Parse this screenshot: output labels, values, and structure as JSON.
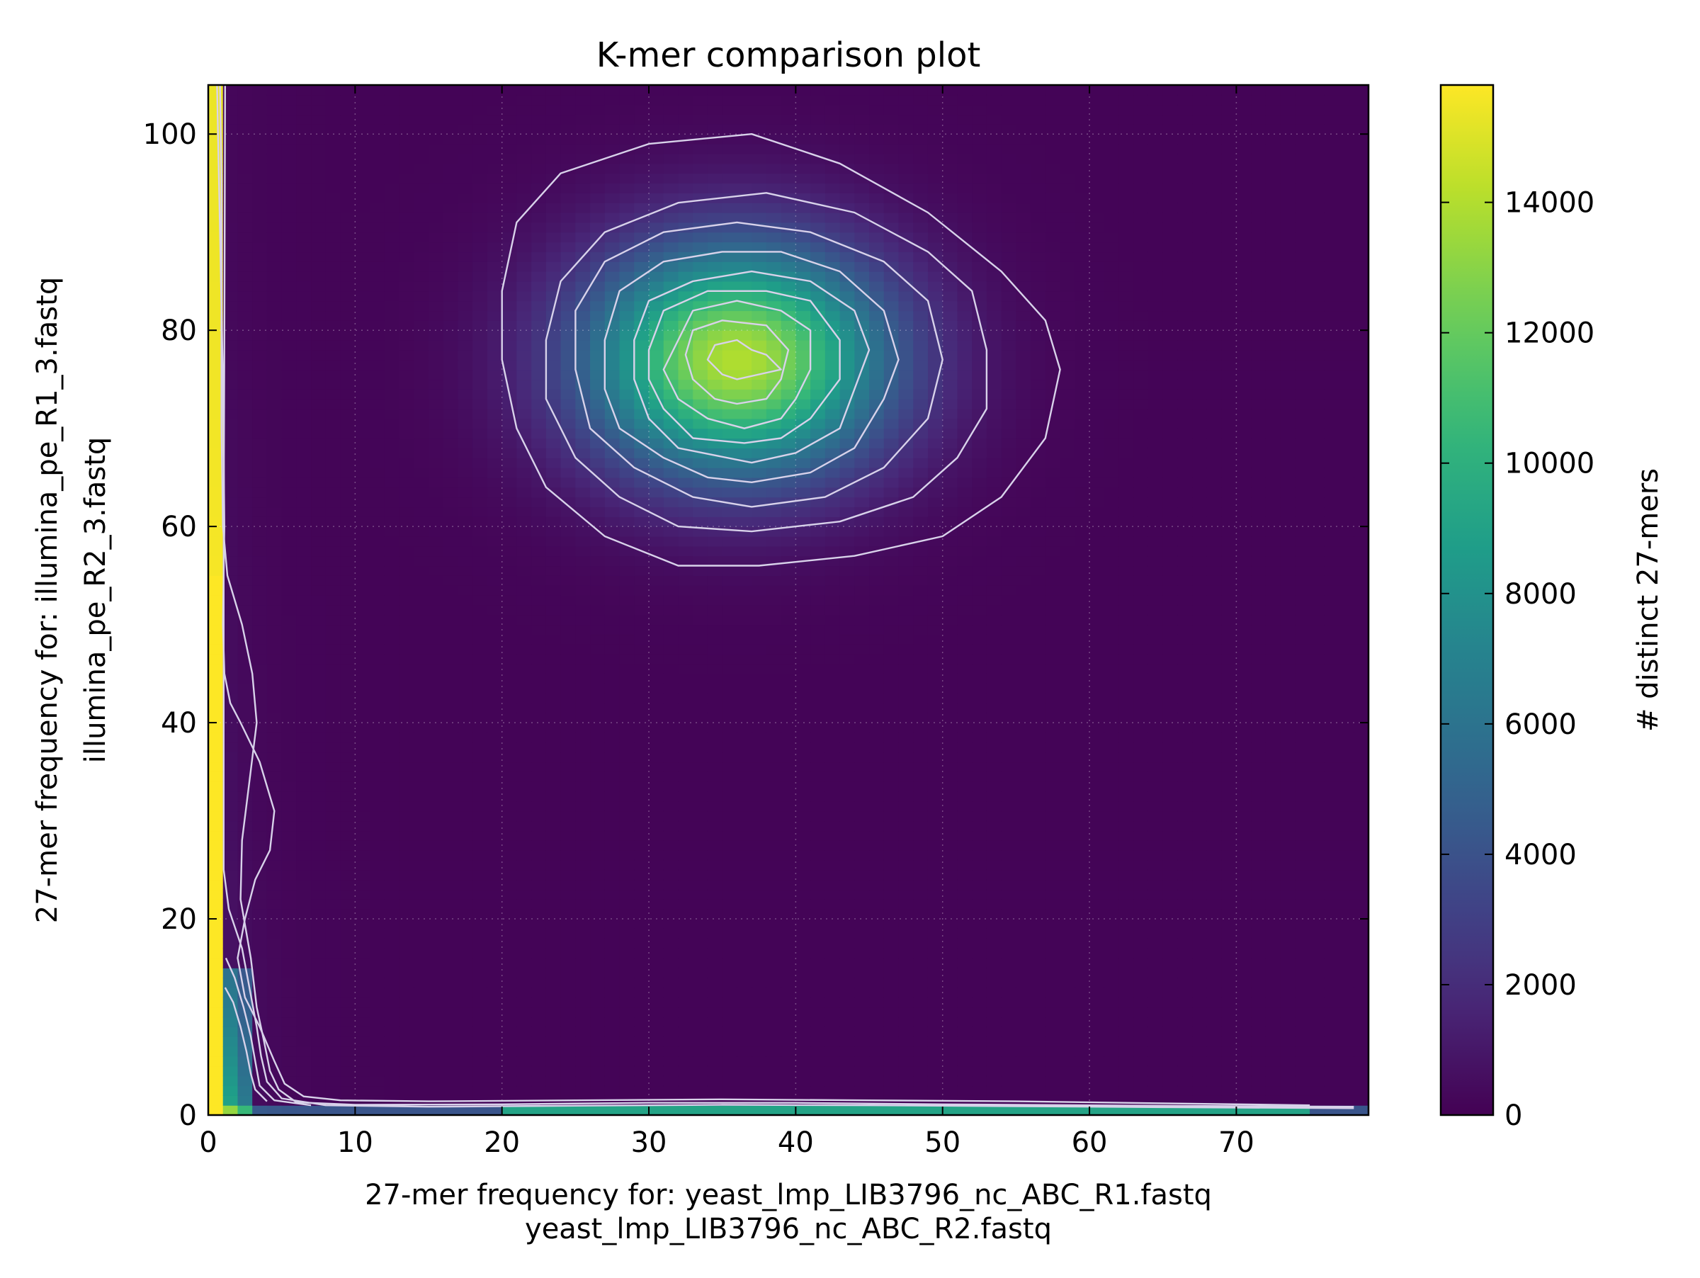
{
  "chart_data": {
    "type": "heatmap",
    "title": "K-mer comparison plot",
    "xlabel_lines": [
      "27-mer frequency for: yeast_lmp_LIB3796_nc_ABC_R1.fastq",
      "yeast_lmp_LIB3796_nc_ABC_R2.fastq"
    ],
    "ylabel_lines": [
      "27-mer frequency for: illumina_pe_R1_3.fastq",
      "illumina_pe_R2_3.fastq"
    ],
    "xlim": [
      0,
      79
    ],
    "ylim": [
      0,
      105
    ],
    "x_ticks": [
      0,
      10,
      20,
      30,
      40,
      50,
      60,
      70
    ],
    "y_ticks": [
      0,
      20,
      40,
      60,
      80,
      100
    ],
    "grid": true,
    "colormap": "viridis",
    "colorbar": {
      "label": "# distinct 27-mers",
      "range": [
        0,
        15800
      ],
      "ticks": [
        0,
        2000,
        4000,
        6000,
        8000,
        10000,
        12000,
        14000
      ]
    },
    "contour_color": "#d8d2ea",
    "features": [
      {
        "name": "central peak",
        "x_center": 36,
        "y_center": 77,
        "sx": 7.2,
        "sy": 8.2,
        "peak_count": 13800
      },
      {
        "name": "y-axis column",
        "x_range": [
          0,
          1
        ],
        "peak_count": 15800
      },
      {
        "name": "x-axis row",
        "y_range": [
          0,
          1
        ],
        "peak_count": 15800
      },
      {
        "name": "bottom-left corner",
        "x_range": [
          0,
          4
        ],
        "y_range": [
          0,
          22
        ],
        "peak_count": 15800
      }
    ],
    "contours": [
      {
        "level": 1500,
        "points": [
          [
            37.5,
            56
          ],
          [
            44,
            57
          ],
          [
            50,
            59
          ],
          [
            54,
            63
          ],
          [
            57,
            69
          ],
          [
            58,
            76
          ],
          [
            57,
            81
          ],
          [
            54,
            86
          ],
          [
            49,
            92
          ],
          [
            43,
            97
          ],
          [
            37,
            100
          ],
          [
            30,
            99
          ],
          [
            24,
            96
          ],
          [
            21,
            91
          ],
          [
            20,
            84
          ],
          [
            20,
            77
          ],
          [
            21,
            70
          ],
          [
            23,
            64
          ],
          [
            27,
            59
          ],
          [
            32,
            56
          ]
        ]
      },
      {
        "level": 3000,
        "points": [
          [
            37,
            59.5
          ],
          [
            43,
            60.5
          ],
          [
            48,
            63
          ],
          [
            51,
            67
          ],
          [
            53,
            72
          ],
          [
            53,
            78
          ],
          [
            52,
            84
          ],
          [
            49,
            88
          ],
          [
            44,
            92
          ],
          [
            38,
            94
          ],
          [
            32,
            93
          ],
          [
            27,
            90
          ],
          [
            24,
            85
          ],
          [
            23,
            79
          ],
          [
            23,
            73
          ],
          [
            25,
            67
          ],
          [
            28,
            63
          ],
          [
            32,
            60
          ]
        ]
      },
      {
        "level": 4500,
        "points": [
          [
            37,
            62
          ],
          [
            42,
            63
          ],
          [
            46,
            66
          ],
          [
            49,
            71
          ],
          [
            50,
            77
          ],
          [
            49,
            83
          ],
          [
            46,
            87
          ],
          [
            41,
            90
          ],
          [
            36,
            91
          ],
          [
            31,
            90
          ],
          [
            27,
            87
          ],
          [
            25,
            82
          ],
          [
            25,
            76
          ],
          [
            26,
            70
          ],
          [
            29,
            66
          ],
          [
            33,
            63
          ]
        ]
      },
      {
        "level": 6000,
        "points": [
          [
            37,
            64.5
          ],
          [
            41,
            65.5
          ],
          [
            44,
            68
          ],
          [
            46,
            73
          ],
          [
            47,
            77
          ],
          [
            46,
            82
          ],
          [
            43,
            86
          ],
          [
            39,
            88
          ],
          [
            35,
            88
          ],
          [
            31,
            87
          ],
          [
            28,
            84
          ],
          [
            27,
            79
          ],
          [
            27,
            74
          ],
          [
            28,
            70
          ],
          [
            31,
            67
          ],
          [
            34,
            65
          ]
        ]
      },
      {
        "level": 7500,
        "points": [
          [
            37,
            66.5
          ],
          [
            40,
            67.5
          ],
          [
            43,
            70
          ],
          [
            44,
            74
          ],
          [
            45,
            78
          ],
          [
            44,
            82
          ],
          [
            41,
            85
          ],
          [
            37,
            86
          ],
          [
            33,
            85
          ],
          [
            30,
            83
          ],
          [
            29,
            79
          ],
          [
            29,
            75
          ],
          [
            30,
            71
          ],
          [
            32,
            68
          ]
        ]
      },
      {
        "level": 9000,
        "points": [
          [
            36.5,
            68.5
          ],
          [
            39,
            69
          ],
          [
            41,
            71
          ],
          [
            43,
            75
          ],
          [
            43,
            79
          ],
          [
            41,
            83
          ],
          [
            38,
            84
          ],
          [
            34,
            84
          ],
          [
            31,
            82
          ],
          [
            30,
            78
          ],
          [
            30,
            75
          ],
          [
            31,
            72
          ],
          [
            33,
            69
          ]
        ]
      },
      {
        "level": 10500,
        "points": [
          [
            36.5,
            70
          ],
          [
            39,
            71
          ],
          [
            40,
            73
          ],
          [
            41,
            76
          ],
          [
            41,
            80
          ],
          [
            39,
            82
          ],
          [
            36,
            83
          ],
          [
            33,
            82
          ],
          [
            32,
            79
          ],
          [
            31,
            76
          ],
          [
            32,
            73
          ],
          [
            34,
            71
          ]
        ]
      },
      {
        "level": 12000,
        "points": [
          [
            36,
            72.5
          ],
          [
            38,
            73
          ],
          [
            39,
            75
          ],
          [
            39.5,
            78
          ],
          [
            38,
            80.5
          ],
          [
            35,
            81
          ],
          [
            33,
            80
          ],
          [
            32.5,
            77.5
          ],
          [
            33,
            75
          ],
          [
            34.5,
            73
          ]
        ]
      },
      {
        "level": 13000,
        "points": [
          [
            36,
            75
          ],
          [
            37.5,
            75.5
          ],
          [
            39,
            76
          ],
          [
            38,
            77.5
          ],
          [
            37,
            78
          ],
          [
            36,
            79
          ],
          [
            34.5,
            78.5
          ],
          [
            34,
            77
          ],
          [
            35,
            75.5
          ]
        ]
      }
    ],
    "axis_contours": [
      {
        "level": 1500,
        "points": [
          [
            0.6,
            105
          ],
          [
            0.8,
            90
          ],
          [
            1,
            75
          ],
          [
            1.1,
            60
          ],
          [
            1,
            50
          ],
          [
            1.1,
            45
          ],
          [
            1.5,
            42
          ],
          [
            2.2,
            40
          ],
          [
            3.5,
            36
          ],
          [
            4.5,
            31
          ],
          [
            4.2,
            27
          ],
          [
            3.2,
            24
          ],
          [
            2.5,
            20
          ],
          [
            2,
            16
          ],
          [
            2.5,
            12
          ],
          [
            3.5,
            9
          ],
          [
            4.5,
            5.5
          ],
          [
            5.2,
            3.2
          ],
          [
            6.5,
            1.9
          ],
          [
            9,
            1.5
          ],
          [
            15,
            1.4
          ],
          [
            25,
            1.5
          ],
          [
            35,
            1.6
          ],
          [
            45,
            1.5
          ],
          [
            55,
            1.4
          ],
          [
            65,
            1.2
          ],
          [
            75,
            1
          ]
        ]
      },
      {
        "level": 4000,
        "points": [
          [
            0.8,
            105
          ],
          [
            0.9,
            95
          ],
          [
            0.9,
            80
          ],
          [
            0.9,
            70
          ],
          [
            1,
            60
          ],
          [
            1.3,
            55
          ],
          [
            2.3,
            50
          ],
          [
            3,
            45
          ],
          [
            3.3,
            40
          ],
          [
            2.8,
            34
          ],
          [
            2.3,
            28
          ],
          [
            2.2,
            22
          ],
          [
            2.9,
            16
          ],
          [
            3.3,
            11
          ],
          [
            3.8,
            7.5
          ],
          [
            4.2,
            4.5
          ],
          [
            4.8,
            2.6
          ],
          [
            6,
            1.3
          ],
          [
            10,
            1.05
          ],
          [
            20,
            1.1
          ],
          [
            30,
            1.25
          ],
          [
            40,
            1.25
          ],
          [
            50,
            1.1
          ],
          [
            60,
            1.0
          ],
          [
            70,
            0.9
          ],
          [
            78,
            0.85
          ]
        ]
      },
      {
        "level": 7000,
        "points": [
          [
            1.15,
            105
          ],
          [
            1.1,
            80
          ],
          [
            1.05,
            60
          ],
          [
            1.05,
            40
          ],
          [
            1.05,
            25
          ],
          [
            1.4,
            21
          ],
          [
            2.3,
            17
          ],
          [
            2.8,
            13
          ],
          [
            3.3,
            9
          ],
          [
            3.6,
            6
          ],
          [
            4,
            3.4
          ],
          [
            5,
            1.7
          ],
          [
            8,
            1.0
          ],
          [
            15,
            0.85
          ],
          [
            25,
            0.95
          ],
          [
            35,
            1.05
          ],
          [
            45,
            1.0
          ],
          [
            55,
            0.9
          ],
          [
            65,
            0.8
          ],
          [
            78,
            0.7
          ]
        ]
      },
      {
        "level": 10000,
        "points": [
          [
            1.2,
            16
          ],
          [
            1.8,
            14
          ],
          [
            2.4,
            11
          ],
          [
            2.9,
            8
          ],
          [
            3.2,
            5.5
          ],
          [
            3.5,
            3
          ],
          [
            4.5,
            1.5
          ],
          [
            7,
            1.0
          ]
        ]
      },
      {
        "level": 13000,
        "points": [
          [
            1.15,
            13
          ],
          [
            1.7,
            11.5
          ],
          [
            2.2,
            9
          ],
          [
            2.6,
            6.5
          ],
          [
            2.9,
            4.2
          ],
          [
            3.2,
            2.6
          ],
          [
            4,
            1.4
          ]
        ]
      }
    ]
  }
}
